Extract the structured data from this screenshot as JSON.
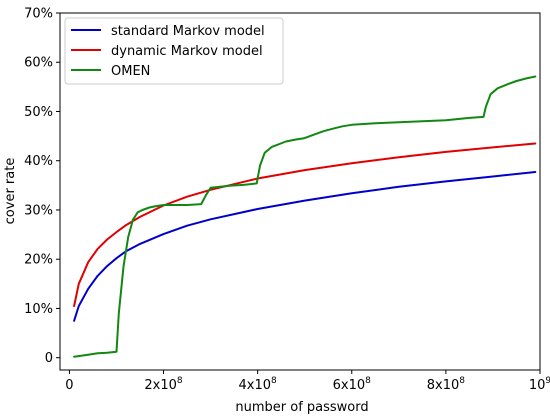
{
  "chart_data": {
    "type": "line",
    "xlabel": "number of password",
    "ylabel": "cover rate",
    "xlim": [
      -20000000,
      1000000000
    ],
    "ylim": [
      -2.5,
      70
    ],
    "x_ticks": [
      {
        "value": 0,
        "label": "0"
      },
      {
        "value": 200000000,
        "label": "2x10",
        "exp": "8"
      },
      {
        "value": 400000000,
        "label": "4x10",
        "exp": "8"
      },
      {
        "value": 600000000,
        "label": "6x10",
        "exp": "8"
      },
      {
        "value": 800000000,
        "label": "8x10",
        "exp": "8"
      },
      {
        "value": 1000000000,
        "label": "10",
        "exp": "9"
      }
    ],
    "y_ticks": [
      {
        "value": 0,
        "label": "0"
      },
      {
        "value": 10,
        "label": "10%"
      },
      {
        "value": 20,
        "label": "20%"
      },
      {
        "value": 30,
        "label": "30%"
      },
      {
        "value": 40,
        "label": "40%"
      },
      {
        "value": 50,
        "label": "50%"
      },
      {
        "value": 60,
        "label": "60%"
      },
      {
        "value": 70,
        "label": "70%"
      }
    ],
    "legend_position": "top-left",
    "series": [
      {
        "name": "standard Markov model",
        "color": "#0000cc",
        "x": [
          10000000,
          20000000,
          40000000,
          60000000,
          80000000,
          100000000,
          120000000,
          150000000,
          200000000,
          250000000,
          300000000,
          400000000,
          500000000,
          600000000,
          700000000,
          800000000,
          900000000,
          990000000
        ],
        "y": [
          7.5,
          10.5,
          14.0,
          16.6,
          18.6,
          20.2,
          21.6,
          23.1,
          25.1,
          26.8,
          28.1,
          30.2,
          31.9,
          33.4,
          34.7,
          35.8,
          36.8,
          37.7
        ]
      },
      {
        "name": "dynamic Markov model",
        "color": "#e00000",
        "x": [
          10000000,
          20000000,
          40000000,
          60000000,
          80000000,
          100000000,
          120000000,
          150000000,
          200000000,
          250000000,
          300000000,
          400000000,
          500000000,
          600000000,
          700000000,
          800000000,
          900000000,
          990000000
        ],
        "y": [
          10.5,
          15.0,
          19.4,
          22.1,
          24.0,
          25.5,
          26.9,
          28.6,
          30.9,
          32.7,
          34.1,
          36.4,
          38.1,
          39.5,
          40.7,
          41.8,
          42.7,
          43.5
        ]
      },
      {
        "name": "OMEN",
        "color": "#118811",
        "x": [
          10000000,
          40000000,
          60000000,
          80000000,
          100000000,
          105000000,
          115000000,
          125000000,
          135000000,
          145000000,
          155000000,
          170000000,
          180000000,
          200000000,
          250000000,
          280000000,
          290000000,
          300000000,
          340000000,
          370000000,
          398000000,
          405000000,
          415000000,
          430000000,
          460000000,
          480000000,
          500000000,
          520000000,
          540000000,
          560000000,
          580000000,
          600000000,
          650000000,
          700000000,
          750000000,
          800000000,
          850000000,
          880000000,
          885000000,
          895000000,
          910000000,
          930000000,
          950000000,
          970000000,
          990000000
        ],
        "y": [
          0.2,
          0.6,
          0.9,
          1.0,
          1.2,
          9.0,
          18.5,
          24.5,
          28.0,
          29.5,
          30.0,
          30.5,
          30.7,
          31.0,
          31.0,
          31.2,
          33.0,
          34.5,
          34.9,
          35.1,
          35.4,
          39.0,
          41.6,
          42.8,
          43.9,
          44.3,
          44.6,
          45.3,
          46.0,
          46.5,
          47.0,
          47.3,
          47.6,
          47.8,
          48.0,
          48.2,
          48.7,
          48.9,
          51.0,
          53.5,
          54.7,
          55.5,
          56.2,
          56.7,
          57.1
        ]
      }
    ]
  }
}
